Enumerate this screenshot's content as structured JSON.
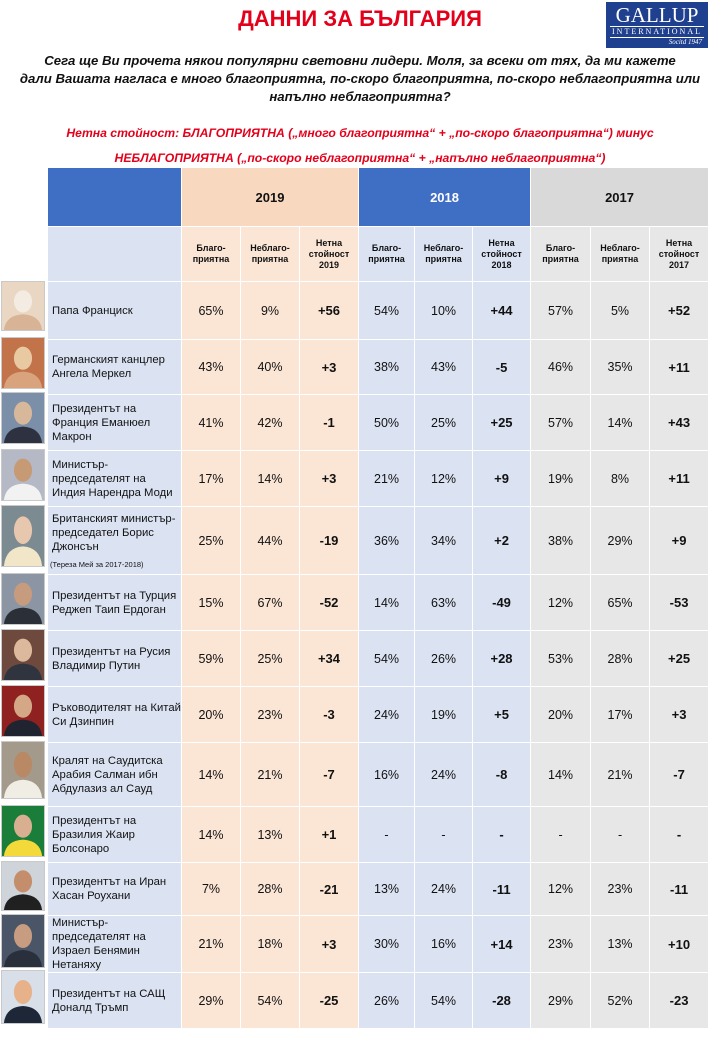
{
  "header": {
    "title": "ДАННИ ЗА БЪЛГАРИЯ",
    "logo_main": "GALLUP",
    "logo_sub": "INTERNATIONAL",
    "logo_est": "Socitd 1947"
  },
  "question": {
    "line1": "Сега ще Ви прочета някои популярни световни лидери. Моля, за всеки от тях, да ми кажете",
    "line2": "дали Вашата нагласа е много благоприятна, по-скоро благоприятна, по-скоро неблагоприятна или",
    "line3": "напълно неблагоприятна?"
  },
  "net_note": {
    "line1": "Нетна стойност: БЛАГОПРИЯТНА („много благоприятна“ + „по-скоро благоприятна“) минус",
    "line2": "НЕБЛАГОПРИЯТНА („по-скоро неблагоприятна“ + „напълно неблагоприятна“)"
  },
  "colors": {
    "accent_red": "#e3001b",
    "header_blue": "#3f6fc4",
    "col2019": "#fbe6d6",
    "col2018": "#dbe3f3",
    "col2017": "#e7e7e7",
    "logo_blue": "#1f3f8f"
  },
  "table": {
    "years": [
      "2019",
      "2018",
      "2017"
    ],
    "subheaders": {
      "fav": "Благо-приятна",
      "unfav": "Неблаго-приятна",
      "net": [
        "Нетна стойност 2019",
        "Нетна стойност 2018",
        "Нетна стойност 2017"
      ]
    },
    "rows": [
      {
        "name": "Папа Франциск",
        "note": "",
        "photo": "pope-photo",
        "v": [
          "65%",
          "9%",
          "+56",
          "54%",
          "10%",
          "+44",
          "57%",
          "5%",
          "+52"
        ]
      },
      {
        "name": "Германският канцлер Ангела Меркел",
        "note": "",
        "photo": "merkel-photo",
        "v": [
          "43%",
          "40%",
          "+3",
          "38%",
          "43%",
          "-5",
          "46%",
          "35%",
          "+11"
        ]
      },
      {
        "name": "Президентът на Франция Еманюел Макрон",
        "note": "",
        "photo": "macron-photo",
        "v": [
          "41%",
          "42%",
          "-1",
          "50%",
          "25%",
          "+25",
          "57%",
          "14%",
          "+43"
        ]
      },
      {
        "name": "Министър-председателят на Индия Нарендра Моди",
        "note": "",
        "photo": "modi-photo",
        "v": [
          "17%",
          "14%",
          "+3",
          "21%",
          "12%",
          "+9",
          "19%",
          "8%",
          "+11"
        ]
      },
      {
        "name": "Британският министър-председател Борис Джонсън",
        "note": "(Тереза Мей за 2017-2018)",
        "photo": "johnson-photo",
        "v": [
          "25%",
          "44%",
          "-19",
          "36%",
          "34%",
          "+2",
          "38%",
          "29%",
          "+9"
        ]
      },
      {
        "name": "Президентът на Турция Реджеп Таип Ердоган",
        "note": "",
        "photo": "erdogan-photo",
        "v": [
          "15%",
          "67%",
          "-52",
          "14%",
          "63%",
          "-49",
          "12%",
          "65%",
          "-53"
        ]
      },
      {
        "name": "Президентът на Русия Владимир Путин",
        "note": "",
        "photo": "putin-photo",
        "v": [
          "59%",
          "25%",
          "+34",
          "54%",
          "26%",
          "+28",
          "53%",
          "28%",
          "+25"
        ]
      },
      {
        "name": "Ръководителят на Китай Си Дзинпин",
        "note": "",
        "photo": "xi-photo",
        "v": [
          "20%",
          "23%",
          "-3",
          "24%",
          "19%",
          "+5",
          "20%",
          "17%",
          "+3"
        ]
      },
      {
        "name": "Кралят на Саудитска Арабия Салман ибн Абдулазиз ал Сауд",
        "note": "",
        "photo": "salman-photo",
        "v": [
          "14%",
          "21%",
          "-7",
          "16%",
          "24%",
          "-8",
          "14%",
          "21%",
          "-7"
        ]
      },
      {
        "name": "Президентът на Бразилия Жаир Болсонаро",
        "note": "",
        "photo": "bolsonaro-photo",
        "v": [
          "14%",
          "13%",
          "+1",
          "-",
          "-",
          "-",
          "-",
          "-",
          "-"
        ]
      },
      {
        "name": "Президентът на Иран Хасан Роухани",
        "note": "",
        "photo": "rouhani-photo",
        "v": [
          "7%",
          "28%",
          "-21",
          "13%",
          "24%",
          "-11",
          "12%",
          "23%",
          "-11"
        ]
      },
      {
        "name": "Министър-председателят на Израел Бенямин Нетаняху",
        "note": "",
        "photo": "netanyahu-photo",
        "v": [
          "21%",
          "18%",
          "+3",
          "30%",
          "16%",
          "+14",
          "23%",
          "13%",
          "+10"
        ]
      },
      {
        "name": "Президентът на САЩ Доналд Тръмп",
        "note": "",
        "photo": "trump-photo",
        "v": [
          "29%",
          "54%",
          "-25",
          "26%",
          "54%",
          "-28",
          "29%",
          "52%",
          "-23"
        ]
      }
    ]
  }
}
